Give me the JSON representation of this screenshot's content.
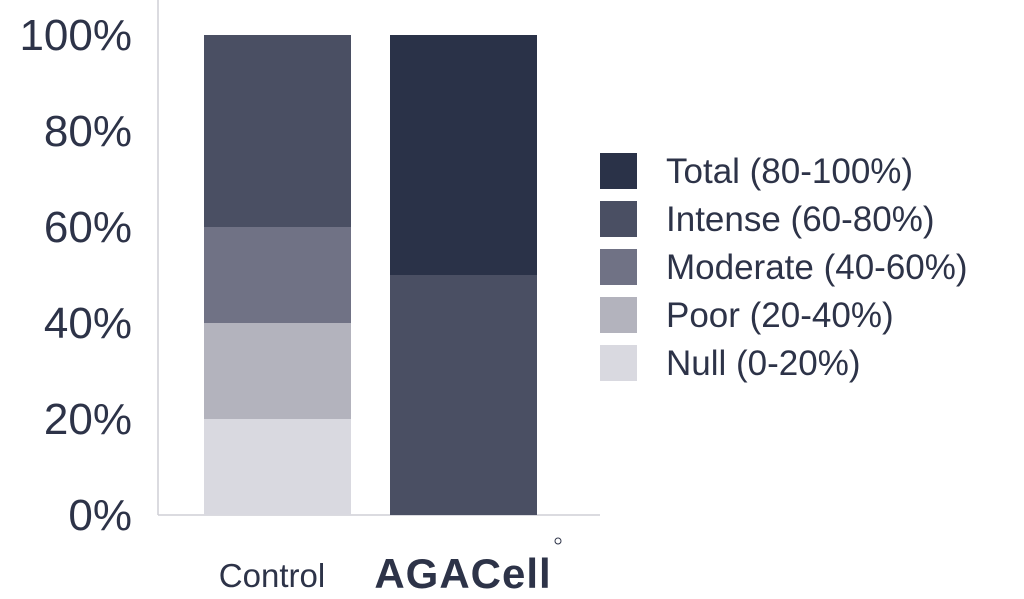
{
  "chart_data": {
    "type": "bar",
    "stacked": true,
    "categories": [
      "Control",
      "AGACell"
    ],
    "series": [
      {
        "name": "Null (0-20%)",
        "color": "#d9d9e0",
        "values": [
          20,
          0
        ]
      },
      {
        "name": "Poor (20-40%)",
        "color": "#b3b3bd",
        "values": [
          20,
          0
        ]
      },
      {
        "name": "Moderate (40-60%)",
        "color": "#707285",
        "values": [
          20,
          0
        ]
      },
      {
        "name": "Intense (60-80%)",
        "color": "#4a4f63",
        "values": [
          40,
          50
        ]
      },
      {
        "name": "Total (80-100%)",
        "color": "#2a3248",
        "values": [
          0,
          50
        ]
      }
    ],
    "yticks": [
      "0%",
      "20%",
      "40%",
      "60%",
      "80%",
      "100%"
    ],
    "ylim": [
      0,
      100
    ],
    "legend_position": "right",
    "legend_order": [
      "Total (80-100%)",
      "Intense (60-80%)",
      "Moderate (40-60%)",
      "Poor (20-40%)",
      "Null (0-20%)"
    ],
    "grid": false,
    "title": "",
    "xlabel": "",
    "ylabel": ""
  },
  "logo": {
    "text": "AGACell",
    "icon": "agacell-logo"
  }
}
